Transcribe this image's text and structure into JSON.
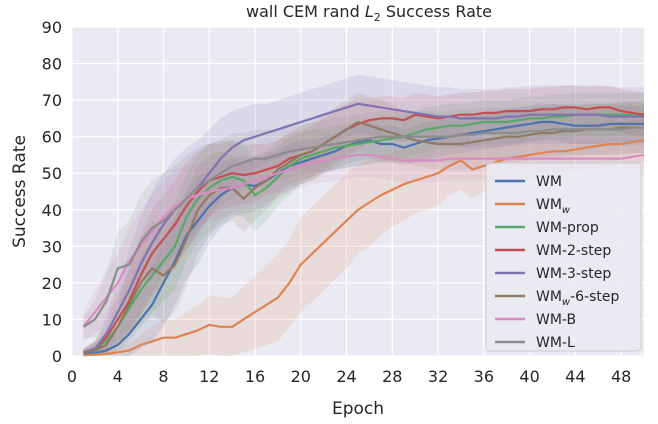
{
  "chart_data": {
    "type": "line",
    "title": "wall CEM rand L2 Success Rate",
    "title_parts": {
      "prefix": "wall CEM rand ",
      "var": "L",
      "sub": "2",
      "suffix": " Success Rate"
    },
    "xlabel": "Epoch",
    "ylabel": "Success Rate",
    "xlim": [
      0,
      50
    ],
    "ylim": [
      0,
      90
    ],
    "xticks": [
      0,
      4,
      8,
      12,
      16,
      20,
      24,
      28,
      32,
      36,
      40,
      44,
      48
    ],
    "yticks": [
      0,
      10,
      20,
      30,
      40,
      50,
      60,
      70,
      80,
      90
    ],
    "grid": true,
    "legend_position": "lower-right",
    "x": [
      1,
      2,
      3,
      4,
      5,
      6,
      7,
      8,
      9,
      10,
      11,
      12,
      13,
      14,
      15,
      16,
      17,
      18,
      19,
      20,
      21,
      22,
      23,
      24,
      25,
      26,
      27,
      28,
      29,
      30,
      31,
      32,
      33,
      34,
      35,
      36,
      37,
      38,
      39,
      40,
      41,
      42,
      43,
      44,
      45,
      46,
      47,
      48,
      49,
      50
    ],
    "series": [
      {
        "name": "WM",
        "label_main": "WM",
        "label_sub": "",
        "label_rest": "",
        "color": "#4c72b0",
        "values": [
          0.5,
          0.8,
          1.5,
          3,
          6,
          10,
          14,
          20,
          26,
          33,
          37,
          41,
          44,
          46,
          47,
          46.5,
          48,
          50,
          52,
          53,
          54,
          55,
          56,
          57.5,
          58.5,
          59,
          58,
          58,
          57,
          58,
          59,
          59.5,
          60,
          60.5,
          61,
          61.5,
          62,
          62.5,
          63,
          63.5,
          64,
          64,
          63.5,
          63,
          63,
          63,
          63.5,
          63.5,
          63.5,
          63.5
        ],
        "spread": [
          0.5,
          1,
          2,
          4,
          6,
          8,
          10,
          12,
          12,
          12,
          12,
          10,
          9,
          8,
          8,
          7,
          7,
          6,
          6,
          6,
          5,
          5,
          5,
          5,
          5,
          5,
          5,
          5,
          5,
          5,
          5,
          5,
          5,
          5,
          5,
          5,
          5,
          5,
          5,
          5,
          5,
          5,
          5,
          5,
          5,
          5,
          5,
          5,
          5,
          5
        ]
      },
      {
        "name": "WMw",
        "label_main": "WM",
        "label_sub": "w",
        "label_rest": "",
        "color": "#dd8452",
        "values": [
          0.2,
          0.4,
          0.6,
          1,
          1.5,
          3,
          4,
          5,
          5,
          6,
          7,
          8.5,
          8,
          8,
          10,
          12,
          14,
          16,
          20,
          25,
          28,
          31,
          34,
          37,
          40,
          42,
          44,
          45.5,
          47,
          48,
          49,
          50,
          52,
          53.5,
          51,
          52,
          53,
          54,
          54.5,
          55,
          55.5,
          56,
          56,
          56.5,
          57,
          57.5,
          58,
          58,
          58.5,
          59
        ],
        "spread": [
          0.3,
          0.5,
          1,
          1.5,
          2,
          3,
          4,
          5,
          5,
          6,
          7,
          8,
          8,
          8,
          9,
          10,
          11,
          12,
          12,
          13,
          13,
          13,
          13,
          13,
          12,
          12,
          11,
          10,
          10,
          9,
          9,
          9,
          8,
          8,
          8,
          7,
          7,
          7,
          7,
          7,
          6,
          6,
          6,
          6,
          6,
          6,
          6,
          6,
          6,
          6
        ]
      },
      {
        "name": "WM-prop",
        "label_main": "WM-prop",
        "label_sub": "",
        "label_rest": "",
        "color": "#55a868",
        "values": [
          1,
          2,
          4,
          8,
          13,
          18,
          22,
          26,
          30,
          38,
          43,
          46,
          48,
          49,
          48,
          44,
          46,
          49,
          52,
          54,
          55,
          56,
          57,
          57.5,
          58,
          58.5,
          59,
          59.5,
          60,
          61,
          62,
          62.5,
          63,
          63,
          63.5,
          64,
          64,
          64,
          64.5,
          65,
          65,
          65.5,
          65.5,
          66,
          66,
          66,
          66,
          66,
          66,
          66
        ],
        "spread": [
          1,
          2,
          3,
          5,
          7,
          9,
          10,
          11,
          12,
          12,
          12,
          12,
          11,
          10,
          10,
          10,
          9,
          8,
          8,
          7,
          7,
          6,
          6,
          6,
          6,
          6,
          6,
          6,
          6,
          6,
          6,
          6,
          6,
          6,
          6,
          6,
          6,
          6,
          6,
          6,
          6,
          6,
          6,
          6,
          6,
          6,
          6,
          6,
          6,
          6
        ]
      },
      {
        "name": "WM-2-step",
        "label_main": "WM-2-step",
        "label_sub": "",
        "label_rest": "",
        "color": "#c44e52",
        "values": [
          1,
          2,
          5,
          10,
          15,
          22,
          28,
          32,
          36,
          41,
          45,
          48,
          49,
          50,
          49.5,
          50,
          51,
          52,
          54,
          55,
          56,
          58,
          60,
          62,
          63.5,
          64.5,
          65,
          65,
          64.5,
          66,
          65.5,
          65,
          65.5,
          66,
          66,
          66.5,
          66.5,
          67,
          67,
          67,
          67.5,
          67.5,
          68,
          68,
          67.5,
          68,
          68,
          67,
          66.5,
          66
        ],
        "spread": [
          1,
          2,
          4,
          7,
          9,
          11,
          12,
          12,
          12,
          12,
          11,
          10,
          9,
          9,
          8,
          8,
          7,
          7,
          7,
          7,
          7,
          7,
          7,
          7,
          7,
          6,
          6,
          6,
          6,
          6,
          6,
          6,
          6,
          6,
          6,
          6,
          6,
          6,
          6,
          6,
          6,
          6,
          6,
          6,
          6,
          6,
          6,
          6,
          6,
          6
        ]
      },
      {
        "name": "WM-3-step",
        "label_main": "WM-3-step",
        "label_sub": "",
        "label_rest": "",
        "color": "#8172b3",
        "values": [
          1,
          2,
          6,
          12,
          18,
          25,
          31,
          36,
          40,
          43,
          46,
          50,
          54,
          57,
          59,
          60,
          61,
          62,
          63,
          64,
          65,
          66,
          67,
          68,
          69,
          68.5,
          68,
          67.5,
          67,
          66.5,
          66,
          65.5,
          65.5,
          65,
          65,
          65,
          65,
          65.5,
          65.5,
          66,
          66,
          66,
          66,
          66,
          66,
          66,
          65.5,
          65.5,
          65.5,
          65.5
        ],
        "spread": [
          1,
          2,
          5,
          8,
          11,
          13,
          14,
          14,
          14,
          14,
          13,
          12,
          11,
          10,
          9,
          9,
          8,
          8,
          8,
          8,
          8,
          8,
          8,
          8,
          8,
          8,
          8,
          8,
          8,
          8,
          8,
          8,
          8,
          8,
          8,
          8,
          8,
          8,
          8,
          8,
          8,
          8,
          8,
          8,
          8,
          8,
          8,
          8,
          8,
          8
        ]
      },
      {
        "name": "WMw-6-step",
        "label_main": "WM",
        "label_sub": "w",
        "label_rest": "-6-step",
        "color": "#937860",
        "values": [
          1,
          1.5,
          3,
          8,
          14,
          20,
          24,
          22,
          25,
          32,
          40,
          44,
          46,
          46,
          43,
          46,
          48,
          51,
          53,
          55,
          56,
          58,
          60,
          62,
          64,
          63,
          62,
          61,
          60,
          59,
          58.5,
          58,
          58,
          58,
          58.5,
          59,
          59.5,
          60,
          60,
          60.5,
          61,
          61,
          61.5,
          61.5,
          62,
          62,
          62,
          62.5,
          62.5,
          62.5
        ],
        "spread": [
          1,
          2,
          4,
          7,
          10,
          12,
          13,
          13,
          13,
          13,
          12,
          11,
          10,
          9,
          9,
          9,
          8,
          8,
          8,
          8,
          8,
          8,
          8,
          8,
          8,
          8,
          8,
          8,
          7,
          7,
          7,
          7,
          7,
          7,
          7,
          7,
          7,
          7,
          7,
          7,
          7,
          7,
          7,
          7,
          7,
          7,
          7,
          7,
          7,
          7
        ]
      },
      {
        "name": "WM-B",
        "label_main": "WM-B",
        "label_sub": "",
        "label_rest": "",
        "color": "#da8bc3",
        "values": [
          8,
          12,
          16,
          20,
          26,
          30,
          34,
          38,
          41,
          43,
          44,
          45,
          45.5,
          46,
          47,
          48,
          49,
          50,
          51,
          52,
          53,
          53.5,
          54,
          54.5,
          55,
          55,
          54.5,
          54,
          53.5,
          53.5,
          53.5,
          53.5,
          54,
          54,
          54,
          54,
          54,
          54,
          54,
          54,
          54,
          54,
          54,
          54,
          54,
          54,
          54,
          54,
          54.5,
          55
        ],
        "spread": [
          4,
          6,
          7,
          8,
          9,
          10,
          10,
          10,
          10,
          9,
          9,
          8,
          8,
          7,
          7,
          7,
          7,
          6,
          6,
          6,
          6,
          6,
          6,
          6,
          6,
          6,
          6,
          6,
          6,
          6,
          6,
          6,
          6,
          6,
          6,
          6,
          6,
          6,
          6,
          6,
          6,
          6,
          6,
          6,
          6,
          6,
          6,
          6,
          6,
          6
        ]
      },
      {
        "name": "WM-L",
        "label_main": "WM-L",
        "label_sub": "",
        "label_rest": "",
        "color": "#8c8c8c",
        "values": [
          8,
          10,
          15,
          24,
          25,
          31,
          35,
          37,
          40,
          43,
          46,
          48,
          50,
          52,
          53,
          54,
          54,
          55,
          56,
          56.5,
          57,
          57.5,
          58,
          58.5,
          59,
          59.5,
          60,
          60,
          60,
          60,
          60,
          60,
          60,
          60.5,
          60.5,
          61,
          61,
          61,
          61,
          61.5,
          61.5,
          62,
          62,
          62,
          62,
          62,
          62,
          62,
          62.5,
          62.5
        ],
        "spread": [
          3,
          5,
          8,
          10,
          12,
          13,
          13,
          13,
          12,
          12,
          11,
          10,
          9,
          9,
          8,
          8,
          8,
          7,
          7,
          7,
          7,
          7,
          7,
          7,
          7,
          7,
          7,
          7,
          7,
          7,
          7,
          7,
          7,
          7,
          7,
          7,
          7,
          7,
          7,
          7,
          7,
          7,
          7,
          7,
          7,
          7,
          7,
          7,
          7,
          7
        ]
      }
    ]
  }
}
